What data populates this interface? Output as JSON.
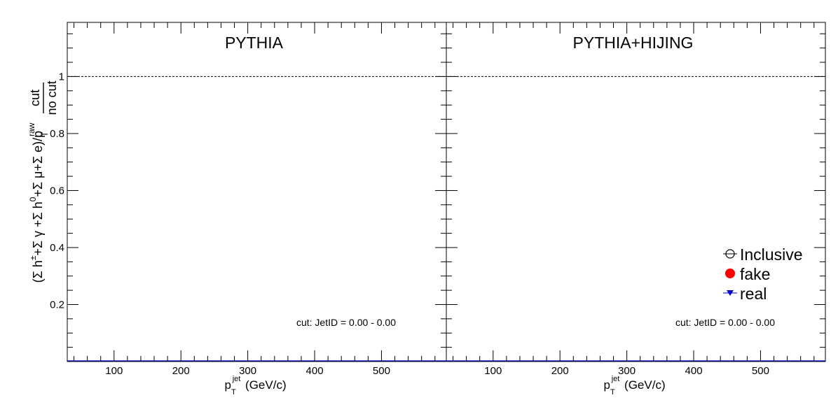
{
  "chart_data": [
    {
      "type": "scatter",
      "title": "PYTHIA",
      "annotation": "cut: JetID = 0.00 - 0.00",
      "xlabel": {
        "main": "p",
        "sub": "T",
        "sup": "jet",
        "unit": " (GeV/c)"
      },
      "ylabel": {
        "parts": [
          "(Σ h",
          "±",
          "+Σ  γ +Σ  h",
          "0",
          "+Σ  μ+Σ  e)/p",
          "raw",
          "T"
        ],
        "ratio_top": "cut",
        "ratio_bottom": "no cut"
      },
      "xlim": [
        30,
        597
      ],
      "ylim": [
        0,
        1.19
      ],
      "xticks": [
        100,
        200,
        300,
        400,
        500
      ],
      "yticks": [
        0.2,
        0.4,
        0.6,
        0.8,
        1
      ],
      "xtick_labels": [
        "100",
        "200",
        "300",
        "400",
        "500"
      ],
      "ytick_labels": [
        "0.2",
        "0.4",
        "0.6",
        "0.8",
        "1"
      ],
      "reference_line_y": 1,
      "series": [
        {
          "name": "Inclusive",
          "values": []
        },
        {
          "name": "fake",
          "values": []
        },
        {
          "name": "real",
          "values": []
        }
      ]
    },
    {
      "type": "scatter",
      "title": "PYTHIA+HIJING",
      "annotation": "cut: JetID = 0.00 - 0.00",
      "xlabel": {
        "main": "p",
        "sub": "T",
        "sup": "jet",
        "unit": " (GeV/c)"
      },
      "xlim": [
        30,
        597
      ],
      "ylim": [
        0,
        1.19
      ],
      "xticks": [
        100,
        200,
        300,
        400,
        500
      ],
      "yticks": [
        0.2,
        0.4,
        0.6,
        0.8,
        1
      ],
      "xtick_labels": [
        "100",
        "200",
        "300",
        "400",
        "500"
      ],
      "reference_line_y": 1,
      "legend_position": "bottom-right",
      "series": [
        {
          "name": "Inclusive",
          "values": []
        },
        {
          "name": "fake",
          "values": []
        },
        {
          "name": "real",
          "values": []
        }
      ]
    }
  ],
  "legend": {
    "items": [
      {
        "label": "Inclusive",
        "marker": "open-circle",
        "color": "#000000"
      },
      {
        "label": "fake",
        "marker": "filled-circle",
        "color": "#ff0000"
      },
      {
        "label": "real",
        "marker": "filled-triangle-down",
        "color": "#0000cc"
      }
    ]
  },
  "colors": {
    "axis": "#000000",
    "baseline": "#0000cc",
    "fake": "#ff0000",
    "real": "#0000cc"
  }
}
